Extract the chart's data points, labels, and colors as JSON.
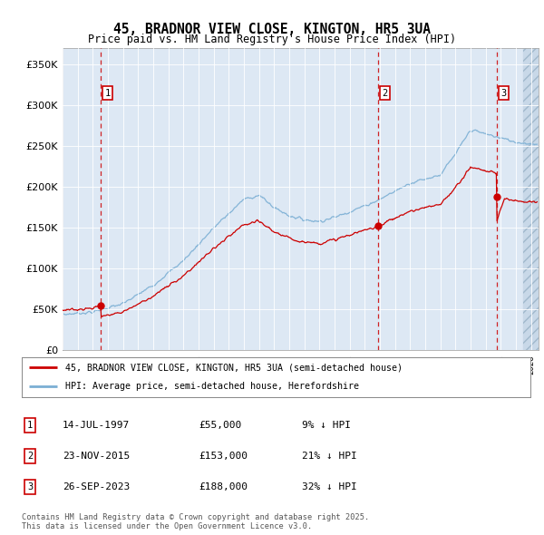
{
  "title": "45, BRADNOR VIEW CLOSE, KINGTON, HR5 3UA",
  "subtitle": "Price paid vs. HM Land Registry's House Price Index (HPI)",
  "ylim": [
    0,
    370000
  ],
  "yticks": [
    0,
    50000,
    100000,
    150000,
    200000,
    250000,
    300000,
    350000
  ],
  "bg_color": "#dde8f4",
  "sale_dates_num": [
    1997.54,
    2015.9,
    2023.74
  ],
  "sale_prices": [
    55000,
    153000,
    188000
  ],
  "sale_labels": [
    "1",
    "2",
    "3"
  ],
  "legend_line1": "45, BRADNOR VIEW CLOSE, KINGTON, HR5 3UA (semi-detached house)",
  "legend_line2": "HPI: Average price, semi-detached house, Herefordshire",
  "table_data": [
    [
      "1",
      "14-JUL-1997",
      "£55,000",
      "9% ↓ HPI"
    ],
    [
      "2",
      "23-NOV-2015",
      "£153,000",
      "21% ↓ HPI"
    ],
    [
      "3",
      "26-SEP-2023",
      "£188,000",
      "32% ↓ HPI"
    ]
  ],
  "footnote": "Contains HM Land Registry data © Crown copyright and database right 2025.\nThis data is licensed under the Open Government Licence v3.0.",
  "red_line_color": "#cc0000",
  "blue_line_color": "#7bafd4",
  "dashed_line_color": "#cc0000",
  "xmin": 1995.0,
  "xmax": 2026.5,
  "hpi_knots_x": [
    1995,
    1997,
    1999,
    2001,
    2003,
    2005,
    2007,
    2008,
    2009,
    2010,
    2011,
    2012,
    2013,
    2014,
    2015,
    2016,
    2017,
    2018,
    2019,
    2020,
    2021,
    2022,
    2023,
    2024,
    2025,
    2026
  ],
  "hpi_knots_y": [
    44000,
    47000,
    57000,
    80000,
    110000,
    150000,
    185000,
    190000,
    175000,
    165000,
    160000,
    158000,
    163000,
    170000,
    177000,
    185000,
    195000,
    205000,
    210000,
    215000,
    240000,
    270000,
    265000,
    260000,
    255000,
    253000
  ]
}
